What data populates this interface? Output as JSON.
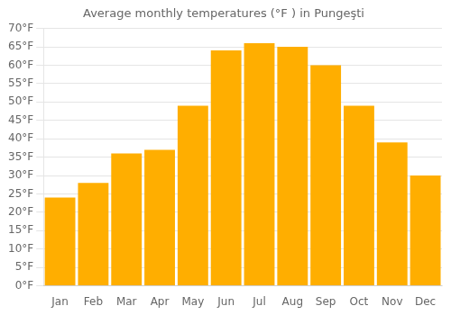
{
  "chart_data": {
    "type": "bar",
    "title": "Average monthly temperatures (°F ) in Pungeşti",
    "categories": [
      "Jan",
      "Feb",
      "Mar",
      "Apr",
      "May",
      "Jun",
      "Jul",
      "Aug",
      "Sep",
      "Oct",
      "Nov",
      "Dec"
    ],
    "values": [
      24,
      28,
      36,
      37,
      49,
      64,
      66,
      65,
      60,
      49,
      39,
      30
    ],
    "color": "#FFAE00",
    "ylim": [
      0,
      70
    ],
    "yticks": [
      {
        "value": 0,
        "label": "0°F"
      },
      {
        "value": 5,
        "label": "5°F"
      },
      {
        "value": 10,
        "label": "10°F"
      },
      {
        "value": 15,
        "label": "15°F"
      },
      {
        "value": 20,
        "label": "20°F"
      },
      {
        "value": 25,
        "label": "25°F"
      },
      {
        "value": 30,
        "label": "30°F"
      },
      {
        "value": 35,
        "label": "35°F"
      },
      {
        "value": 40,
        "label": "40°F"
      },
      {
        "value": 45,
        "label": "45°F"
      },
      {
        "value": 50,
        "label": "50°F"
      },
      {
        "value": 55,
        "label": "55°F"
      },
      {
        "value": 60,
        "label": "60°F"
      },
      {
        "value": 65,
        "label": "65°F"
      },
      {
        "value": 70,
        "label": "70°F"
      }
    ],
    "grid": true
  }
}
